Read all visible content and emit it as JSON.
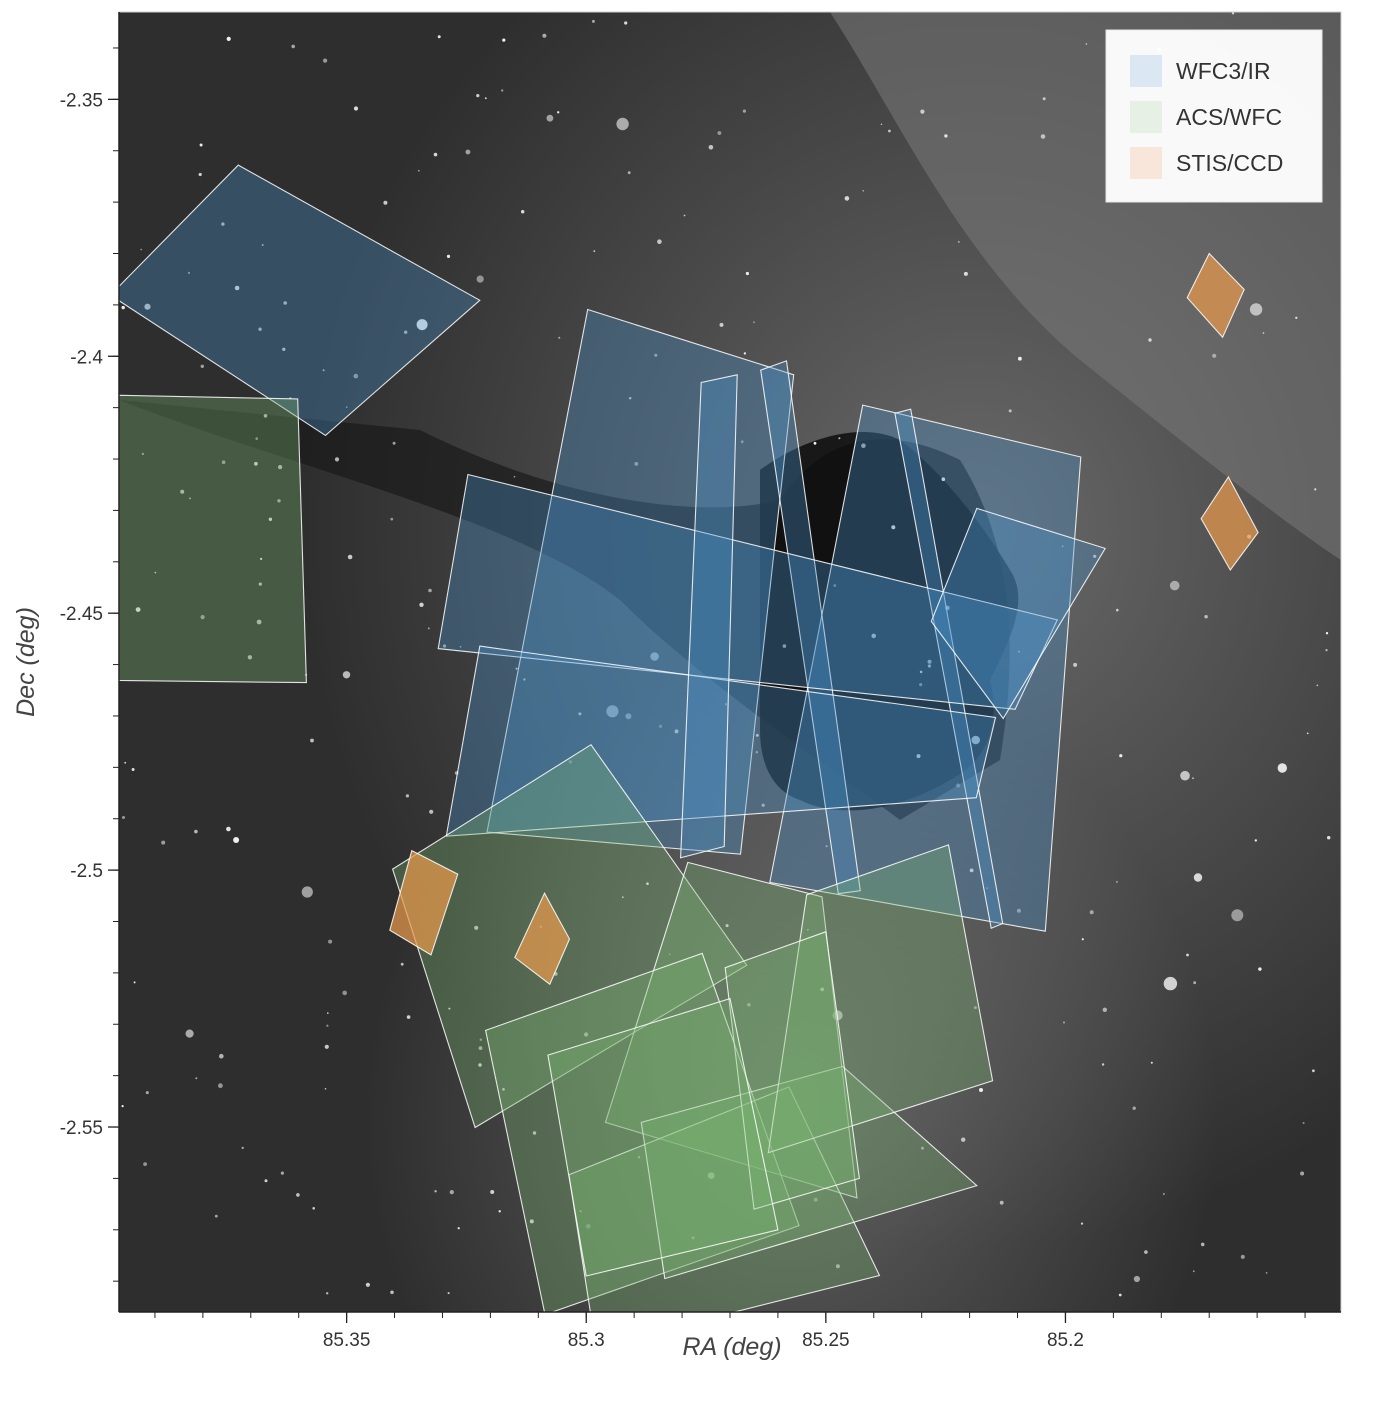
{
  "chart_data": {
    "type": "scatter",
    "subtype": "footprint-polygons",
    "title": "",
    "xlabel": "RA (deg)",
    "ylabel": "Dec (deg)",
    "x_range": [
      85.3975,
      85.1425
    ],
    "y_range": [
      -2.333,
      -2.586
    ],
    "x_axis_reversed": true,
    "x_ticks": [
      85.35,
      85.3,
      85.25,
      85.2
    ],
    "x_tick_labels": [
      "85.35",
      "85.3",
      "85.25",
      "85.2"
    ],
    "y_ticks": [
      -2.35,
      -2.4,
      -2.45,
      -2.5,
      -2.55
    ],
    "y_tick_labels": [
      "-2.35",
      "-2.4",
      "-2.45",
      "-2.5",
      "-2.55"
    ],
    "grid": false,
    "background": "grayscale sky image (Horsehead Nebula region)",
    "legend_position": "top-right",
    "series": [
      {
        "name": "WFC3/IR",
        "color": "#4a90c8",
        "footprints": [
          [
            [
              85.3726,
              -2.3628
            ],
            [
              85.3222,
              -2.3891
            ],
            [
              85.3544,
              -2.4154
            ],
            [
              85.3993,
              -2.3881
            ]
          ],
          [
            [
              85.2997,
              -2.3909
            ],
            [
              85.2567,
              -2.4036
            ],
            [
              85.2678,
              -2.4969
            ],
            [
              85.3207,
              -2.4926
            ]
          ],
          [
            [
              85.2423,
              -2.4095
            ],
            [
              85.1968,
              -2.4196
            ],
            [
              85.2042,
              -2.5119
            ],
            [
              85.2617,
              -2.5024
            ]
          ],
          [
            [
              85.2582,
              -2.4009
            ],
            [
              85.2636,
              -2.4027
            ],
            [
              85.2474,
              -2.5046
            ],
            [
              85.2428,
              -2.504
            ]
          ],
          [
            [
              85.2323,
              -2.4103
            ],
            [
              85.2356,
              -2.4111
            ],
            [
              85.2155,
              -2.5113
            ],
            [
              85.2131,
              -2.5104
            ]
          ],
          [
            [
              85.3247,
              -2.423
            ],
            [
              85.2017,
              -2.4513
            ],
            [
              85.2105,
              -2.4687
            ],
            [
              85.3309,
              -2.4569
            ]
          ],
          [
            [
              85.3222,
              -2.4564
            ],
            [
              85.2146,
              -2.4703
            ],
            [
              85.2186,
              -2.4859
            ],
            [
              85.3292,
              -2.4934
            ]
          ],
          [
            [
              85.2685,
              -2.4036
            ],
            [
              85.276,
              -2.4051
            ],
            [
              85.2803,
              -2.4976
            ],
            [
              85.2712,
              -2.4954
            ]
          ],
          [
            [
              85.2185,
              -2.4296
            ],
            [
              85.1917,
              -2.4374
            ],
            [
              85.213,
              -2.4705
            ],
            [
              85.228,
              -2.4516
            ]
          ]
        ]
      },
      {
        "name": "ACS/WFC",
        "color": "#78b46e",
        "footprints": [
          [
            [
              85.3975,
              -2.4076
            ],
            [
              85.3602,
              -2.4083
            ],
            [
              85.3584,
              -2.4635
            ],
            [
              85.3975,
              -2.4631
            ]
          ],
          [
            [
              85.3404,
              -2.4998
            ],
            [
              85.299,
              -2.4756
            ],
            [
              85.2665,
              -2.5185
            ],
            [
              85.3232,
              -2.5501
            ]
          ],
          [
            [
              85.2788,
              -2.4985
            ],
            [
              85.2508,
              -2.5052
            ],
            [
              85.2435,
              -2.5638
            ],
            [
              85.296,
              -2.5491
            ]
          ],
          [
            [
              85.321,
              -2.5312
            ],
            [
              85.2758,
              -2.5162
            ],
            [
              85.2556,
              -2.5692
            ],
            [
              85.3086,
              -2.5865
            ]
          ],
          [
            [
              85.3036,
              -2.5593
            ],
            [
              85.2577,
              -2.5422
            ],
            [
              85.2388,
              -2.5789
            ],
            [
              85.298,
              -2.5928
            ]
          ],
          [
            [
              85.2885,
              -2.5491
            ],
            [
              85.2465,
              -2.5382
            ],
            [
              85.2185,
              -2.5614
            ],
            [
              85.2836,
              -2.5795
            ]
          ],
          [
            [
              85.254,
              -2.5048
            ],
            [
              85.2244,
              -2.4951
            ],
            [
              85.2152,
              -2.541
            ],
            [
              85.262,
              -2.555
            ]
          ],
          [
            [
              85.271,
              -2.519
            ],
            [
              85.25,
              -2.512
            ],
            [
              85.243,
              -2.56
            ],
            [
              85.265,
              -2.566
            ]
          ],
          [
            [
              85.308,
              -2.536
            ],
            [
              85.27,
              -2.525
            ],
            [
              85.26,
              -2.57
            ],
            [
              85.3,
              -2.579
            ]
          ]
        ]
      },
      {
        "name": "STIS/CCD",
        "color": "#e89a4c",
        "footprints": [
          [
            [
              85.3364,
              -2.4962
            ],
            [
              85.3268,
              -2.5008
            ],
            [
              85.3324,
              -2.5165
            ],
            [
              85.341,
              -2.5117
            ]
          ],
          [
            [
              85.3087,
              -2.5045
            ],
            [
              85.3035,
              -2.5134
            ],
            [
              85.3076,
              -2.5222
            ],
            [
              85.3149,
              -2.517
            ]
          ],
          [
            [
              85.17,
              -2.38
            ],
            [
              85.1627,
              -2.387
            ],
            [
              85.1672,
              -2.3963
            ],
            [
              85.1746,
              -2.3886
            ]
          ],
          [
            [
              85.166,
              -2.4235
            ],
            [
              85.1598,
              -2.4343
            ],
            [
              85.1656,
              -2.4416
            ],
            [
              85.1717,
              -2.4316
            ]
          ]
        ]
      }
    ],
    "legend": {
      "entries": [
        "WFC3/IR",
        "ACS/WFC",
        "STIS/CCD"
      ],
      "swatch_colors": [
        "#dbe7f2",
        "#e6f0e4",
        "#f8e6da"
      ]
    }
  }
}
